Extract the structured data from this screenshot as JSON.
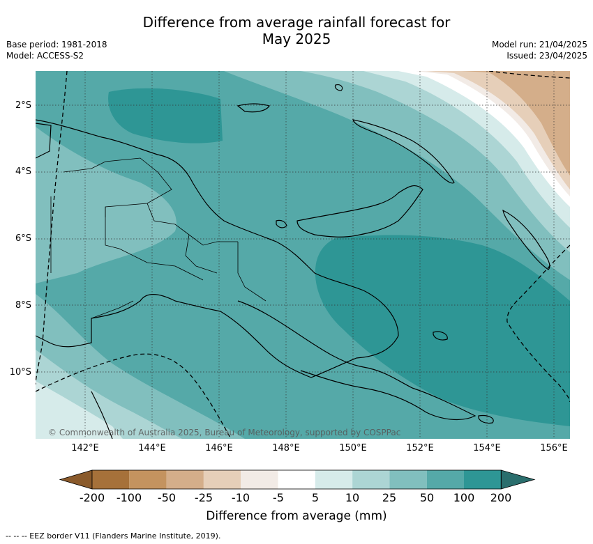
{
  "title_line1": "Difference from average rainfall forecast for",
  "title_line2": "May 2025",
  "meta_left": [
    "Base period: 1981-2018",
    "Model: ACCESS-S2"
  ],
  "meta_right": [
    "Model run: 21/04/2025",
    "Issued: 23/04/2025"
  ],
  "copyright": "© Commonwealth of Australia 2025, Bureau of Meteorology, supported by COSPPac",
  "lat_labels": [
    "2°S",
    "4°S",
    "6°S",
    "8°S",
    "10°S"
  ],
  "lon_labels": [
    "142°E",
    "144°E",
    "146°E",
    "148°E",
    "150°E",
    "152°E",
    "154°E",
    "156°E"
  ],
  "colorbar": {
    "ticks": [
      "-200",
      "-100",
      "-50",
      "-25",
      "-10",
      "-5",
      "5",
      "10",
      "25",
      "50",
      "100",
      "200"
    ],
    "colors": [
      "#a6713a",
      "#c4935f",
      "#d4ae8a",
      "#e6cfb9",
      "#f2ebe6",
      "#ffffff",
      "#d6ebea",
      "#acd5d4",
      "#81bfbe",
      "#55a9a8",
      "#2e9695"
    ],
    "under_color": "#8a5a2b",
    "over_color": "#2a6e6d",
    "label": "Difference from average (mm)"
  },
  "footer": "-- -- -- EEZ border V11 (Flanders Marine Institute, 2019)."
}
